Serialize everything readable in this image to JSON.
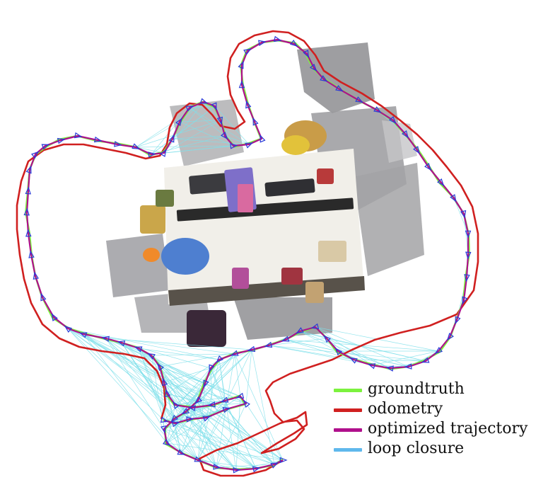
{
  "legend": [
    {
      "label": "groundtruth",
      "color": "#7cf23e"
    },
    {
      "label": "odometry",
      "color": "#d02020"
    },
    {
      "label": "optimized trajectory",
      "color": "#b0108c"
    },
    {
      "label": "loop closure",
      "color": "#5fb8ec"
    }
  ],
  "colors": {
    "groundtruth": "#7cf23e",
    "odometry": "#d02020",
    "optimized": "#b0108c",
    "loop_closure": "#7fe0ea",
    "pose_marker": "#2a3ad8"
  }
}
